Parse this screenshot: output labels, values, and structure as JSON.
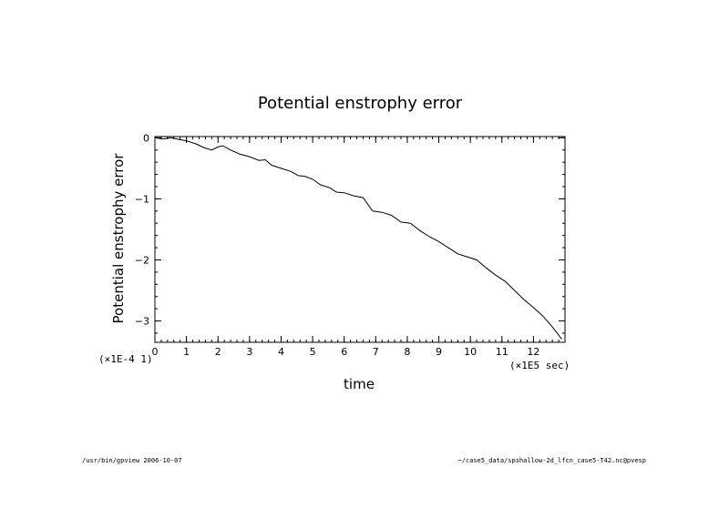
{
  "chart_data": {
    "type": "line",
    "title": "Potential enstrophy error",
    "xlabel": "time",
    "ylabel": "Potential enstrophy error",
    "x_unit_label": "(×1E5 sec)",
    "y_unit_label": "(×1E-4 1)",
    "xlim": [
      0,
      13
    ],
    "ylim": [
      -3.35,
      0.02
    ],
    "x_ticks": [
      0,
      1,
      2,
      3,
      4,
      5,
      6,
      7,
      8,
      9,
      10,
      11,
      12
    ],
    "y_ticks": [
      0,
      -1,
      -2,
      -3
    ],
    "grid": false,
    "series": [
      {
        "x": [
          0,
          0.25,
          0.5,
          0.8,
          1.0,
          1.3,
          1.55,
          1.8,
          2.0,
          2.15,
          2.4,
          2.7,
          3.0,
          3.3,
          3.5,
          3.7,
          4.0,
          4.3,
          4.55,
          4.75,
          5.0,
          5.25,
          5.55,
          5.75,
          6.0,
          6.3,
          6.6,
          6.9,
          7.2,
          7.5,
          7.8,
          8.1,
          8.4,
          8.7,
          9.0,
          9.3,
          9.6,
          9.9,
          10.2,
          10.5,
          10.8,
          11.1,
          11.4,
          11.7,
          12.0,
          12.3,
          12.6,
          12.9
        ],
        "y": [
          0,
          -0.02,
          0.0,
          -0.03,
          -0.05,
          -0.1,
          -0.16,
          -0.2,
          -0.15,
          -0.13,
          -0.2,
          -0.27,
          -0.31,
          -0.37,
          -0.36,
          -0.45,
          -0.5,
          -0.55,
          -0.62,
          -0.63,
          -0.68,
          -0.77,
          -0.82,
          -0.89,
          -0.9,
          -0.95,
          -0.98,
          -1.2,
          -1.22,
          -1.27,
          -1.38,
          -1.4,
          -1.52,
          -1.62,
          -1.7,
          -1.8,
          -1.9,
          -1.95,
          -2.0,
          -2.13,
          -2.25,
          -2.35,
          -2.5,
          -2.65,
          -2.78,
          -2.92,
          -3.1,
          -3.3
        ]
      }
    ]
  },
  "footer": {
    "left": "/usr/bin/gpview  2006-10-07",
    "right": "~/case5_data/spshallow-2d_lfcn_case5-T42.nc@pvesp"
  }
}
